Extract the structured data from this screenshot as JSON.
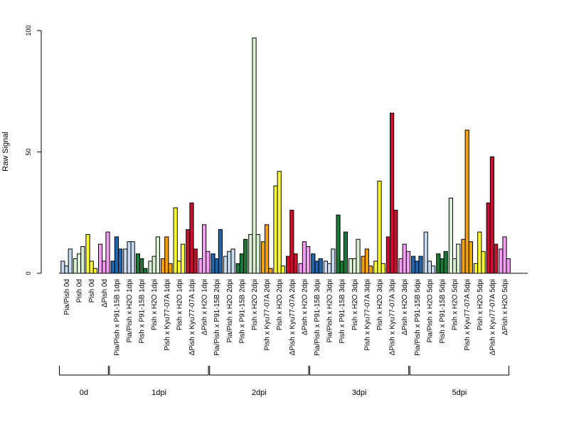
{
  "chart_data": {
    "type": "bar",
    "ylabel": "Raw Signal",
    "ylim": [
      0,
      100
    ],
    "yticks": [
      "0",
      "50",
      "100"
    ],
    "grid": false,
    "colors": {
      "Pia/Pish": "#c6dbef",
      "Pia/Pish x P91-15B": "#2166ac",
      "Pia/Pish x H2O": "#c6dbef",
      "Pish x P91-15B": "#1b7837",
      "Pish x H2O": "#d9f0d3",
      "Pish x Kyu77-07A": "#f5a10c",
      "Pish": "#ffff33",
      "ΔPish x Kyu77-07A": "#c8102e",
      "ΔPish x H2O": "#f59df2",
      "ΔPish": "#f59df2"
    },
    "categories": [
      {
        "label": "Pia/Pish 0d",
        "color_key": "Pia/Pish",
        "values": [
          5,
          3,
          10
        ]
      },
      {
        "label": "Pish 0d",
        "color_key": "Pish x H2O",
        "values": [
          6,
          8,
          11
        ]
      },
      {
        "label": "Pish 0d",
        "color_key": "Pish",
        "values": [
          16,
          5,
          2
        ]
      },
      {
        "label": "ΔPish 0d",
        "color_key": "ΔPish",
        "values": [
          12,
          5,
          17
        ]
      },
      {
        "label": "Pia/Pish x P91-15B 1dpi",
        "color_key": "Pia/Pish x P91-15B",
        "values": [
          5,
          15,
          10
        ]
      },
      {
        "label": "Pia/Pish x H2O 1dpi",
        "color_key": "Pia/Pish x H2O",
        "values": [
          10,
          13,
          13
        ]
      },
      {
        "label": "Pish x P91-15B 1dpi",
        "color_key": "Pish x P91-15B",
        "values": [
          8,
          6,
          2
        ]
      },
      {
        "label": "Pish x H2O 1dpi",
        "color_key": "Pish x H2O",
        "values": [
          5,
          7,
          15
        ]
      },
      {
        "label": "Pish x Kyu77-07A 1dpi",
        "color_key": "Pish x Kyu77-07A",
        "values": [
          6,
          15,
          4
        ]
      },
      {
        "label": "Pish x H2O 1dpi",
        "color_key": "Pish",
        "values": [
          27,
          5,
          12
        ]
      },
      {
        "label": "ΔPish x Kyu77-07A 1dpi",
        "color_key": "ΔPish x Kyu77-07A",
        "values": [
          18,
          29,
          10
        ]
      },
      {
        "label": "ΔPish x H2O 1dpi",
        "color_key": "ΔPish x H2O",
        "values": [
          6,
          20,
          9
        ]
      },
      {
        "label": "Pia/Pish x P91-15B 2dpi",
        "color_key": "Pia/Pish x P91-15B",
        "values": [
          8,
          6,
          18
        ]
      },
      {
        "label": "Pia/Pish x H2O 2dpi",
        "color_key": "Pia/Pish x H2O",
        "values": [
          7,
          9,
          10
        ]
      },
      {
        "label": "Pish x P91-15B 2dpi",
        "color_key": "Pish x P91-15B",
        "values": [
          4,
          8,
          14
        ]
      },
      {
        "label": "Pish x H2O 2dpi",
        "color_key": "Pish x H2O",
        "values": [
          16,
          97,
          16
        ]
      },
      {
        "label": "Pish x Kyu77-07A 2dpi",
        "color_key": "Pish x Kyu77-07A",
        "values": [
          13,
          20,
          2
        ]
      },
      {
        "label": "Pish x H2O 2dpi",
        "color_key": "Pish",
        "values": [
          36,
          42,
          3
        ]
      },
      {
        "label": "ΔPish x Kyu77-07A 2dpi",
        "color_key": "ΔPish x Kyu77-07A",
        "values": [
          7,
          26,
          8
        ]
      },
      {
        "label": "ΔPish x H2O 2dpi",
        "color_key": "ΔPish x H2O",
        "values": [
          4,
          13,
          11
        ]
      },
      {
        "label": "Pia/Pish x P91-15B 3dpi",
        "color_key": "Pia/Pish x P91-15B",
        "values": [
          8,
          5,
          6
        ]
      },
      {
        "label": "Pia/Pish x H2O 3dpi",
        "color_key": "Pia/Pish x H2O",
        "values": [
          5,
          4,
          10
        ]
      },
      {
        "label": "Pish x P91-15B 3dpi",
        "color_key": "Pish x P91-15B",
        "values": [
          24,
          5,
          17
        ]
      },
      {
        "label": "Pish x H2O 3dpi",
        "color_key": "Pish x H2O",
        "values": [
          6,
          6,
          14
        ]
      },
      {
        "label": "Pish x Kyu77-07A 3dpi",
        "color_key": "Pish x Kyu77-07A",
        "values": [
          7,
          10,
          3
        ]
      },
      {
        "label": "Pish x H2O 3dpi",
        "color_key": "Pish",
        "values": [
          5,
          38,
          4
        ]
      },
      {
        "label": "ΔPish x Kyu77-07A 3dpi",
        "color_key": "ΔPish x Kyu77-07A",
        "values": [
          15,
          66,
          26
        ]
      },
      {
        "label": "ΔPish x H2O 3dpi",
        "color_key": "ΔPish x H2O",
        "values": [
          6,
          12,
          9
        ]
      },
      {
        "label": "Pia/Pish x P91-15B 5dpi",
        "color_key": "Pia/Pish x P91-15B",
        "values": [
          7,
          5,
          7
        ]
      },
      {
        "label": "Pia/Pish x H2O 5dpi",
        "color_key": "Pia/Pish x H2O",
        "values": [
          17,
          5,
          3
        ]
      },
      {
        "label": "Pish x P91-15B 5dpi",
        "color_key": "Pish x P91-15B",
        "values": [
          8,
          6,
          9
        ]
      },
      {
        "label": "Pish x H2O 5dpi",
        "color_key": "Pish x H2O",
        "values": [
          31,
          6,
          12
        ]
      },
      {
        "label": "Pish x Kyu77-07A 5dpi",
        "color_key": "Pish x Kyu77-07A",
        "values": [
          14,
          59,
          13
        ]
      },
      {
        "label": "Pish x H2O 5dpi",
        "color_key": "Pish",
        "values": [
          4,
          17,
          9
        ]
      },
      {
        "label": "ΔPish x Kyu77-07A 5dpi",
        "color_key": "ΔPish x Kyu77-07A",
        "values": [
          29,
          48,
          12
        ]
      },
      {
        "label": "ΔPish x H2O 5dpi",
        "color_key": "ΔPish x H2O",
        "values": [
          10,
          15,
          6
        ]
      }
    ],
    "groups": [
      {
        "label": "0d",
        "start": 0,
        "end": 3
      },
      {
        "label": "1dpi",
        "start": 4,
        "end": 11
      },
      {
        "label": "2dpi",
        "start": 12,
        "end": 19
      },
      {
        "label": "3dpi",
        "start": 20,
        "end": 27
      },
      {
        "label": "5dpi",
        "start": 28,
        "end": 35
      }
    ]
  }
}
